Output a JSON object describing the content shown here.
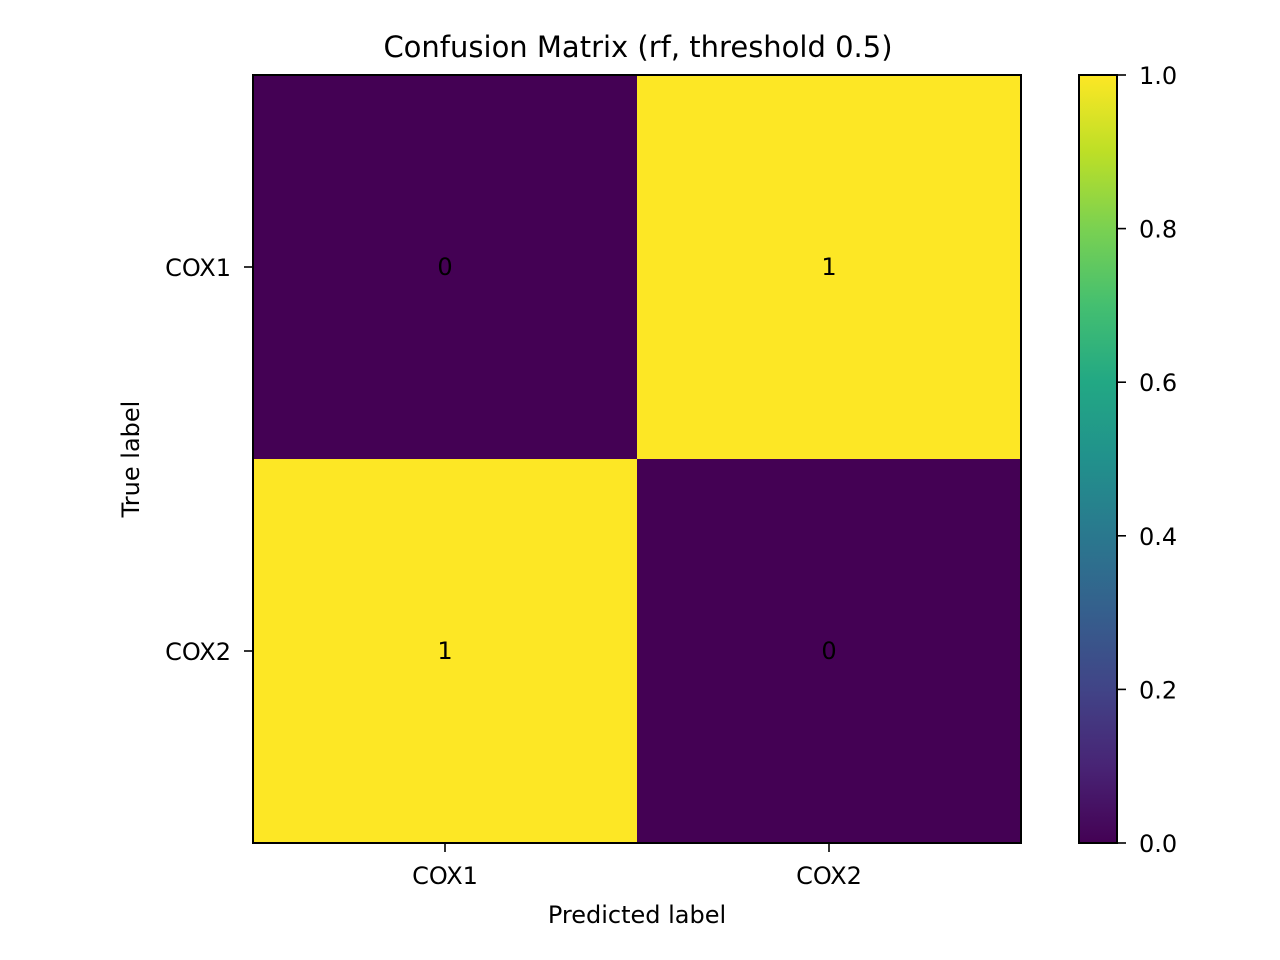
{
  "chart_data": {
    "type": "heatmap",
    "title": "Confusion Matrix (rf, threshold 0.5)",
    "xlabel": "Predicted label",
    "ylabel": "True label",
    "x_categories": [
      "COX1",
      "COX2"
    ],
    "y_categories": [
      "COX1",
      "COX2"
    ],
    "values": [
      [
        0,
        1
      ],
      [
        1,
        0
      ]
    ],
    "cell_labels": [
      [
        "0",
        "1"
      ],
      [
        "1",
        "0"
      ]
    ],
    "colormap": "viridis",
    "low_color": "#440154",
    "high_color": "#fde725",
    "colorbar": {
      "range": [
        0.0,
        1.0
      ],
      "ticks": [
        "0.0",
        "0.2",
        "0.4",
        "0.6",
        "0.8",
        "1.0"
      ]
    },
    "grid": false
  }
}
